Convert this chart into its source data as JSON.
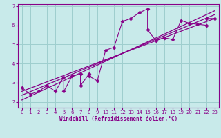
{
  "xlabel": "Windchill (Refroidissement éolien,°C)",
  "bg_color": "#c8eaea",
  "grid_color": "#9ecece",
  "line_color": "#880088",
  "spine_color": "#880088",
  "xlim": [
    -0.5,
    23.5
  ],
  "ylim": [
    1.7,
    7.1
  ],
  "x_ticks": [
    0,
    1,
    2,
    3,
    4,
    5,
    6,
    7,
    8,
    9,
    10,
    11,
    12,
    13,
    14,
    15,
    16,
    17,
    18,
    19,
    20,
    21,
    22,
    23
  ],
  "y_ticks": [
    2,
    3,
    4,
    5,
    6,
    7
  ],
  "scatter_x": [
    0,
    1,
    2,
    3,
    4,
    5,
    5,
    6,
    7,
    7,
    8,
    8,
    9,
    10,
    11,
    12,
    13,
    14,
    15,
    15,
    16,
    17,
    17,
    18,
    19,
    20,
    21,
    22,
    22,
    23
  ],
  "scatter_y": [
    2.75,
    2.4,
    2.55,
    2.85,
    2.55,
    3.3,
    2.55,
    3.35,
    3.45,
    2.85,
    3.45,
    3.35,
    3.1,
    4.7,
    4.85,
    6.2,
    6.35,
    6.65,
    6.85,
    5.75,
    5.2,
    5.35,
    5.35,
    5.25,
    6.25,
    6.1,
    6.05,
    6.0,
    6.35,
    6.35
  ],
  "line1_x": [
    0,
    23
  ],
  "line1_y": [
    2.55,
    6.35
  ],
  "line2_x": [
    0,
    23
  ],
  "line2_y": [
    2.35,
    6.55
  ],
  "line3_x": [
    0,
    23
  ],
  "line3_y": [
    2.1,
    6.75
  ]
}
